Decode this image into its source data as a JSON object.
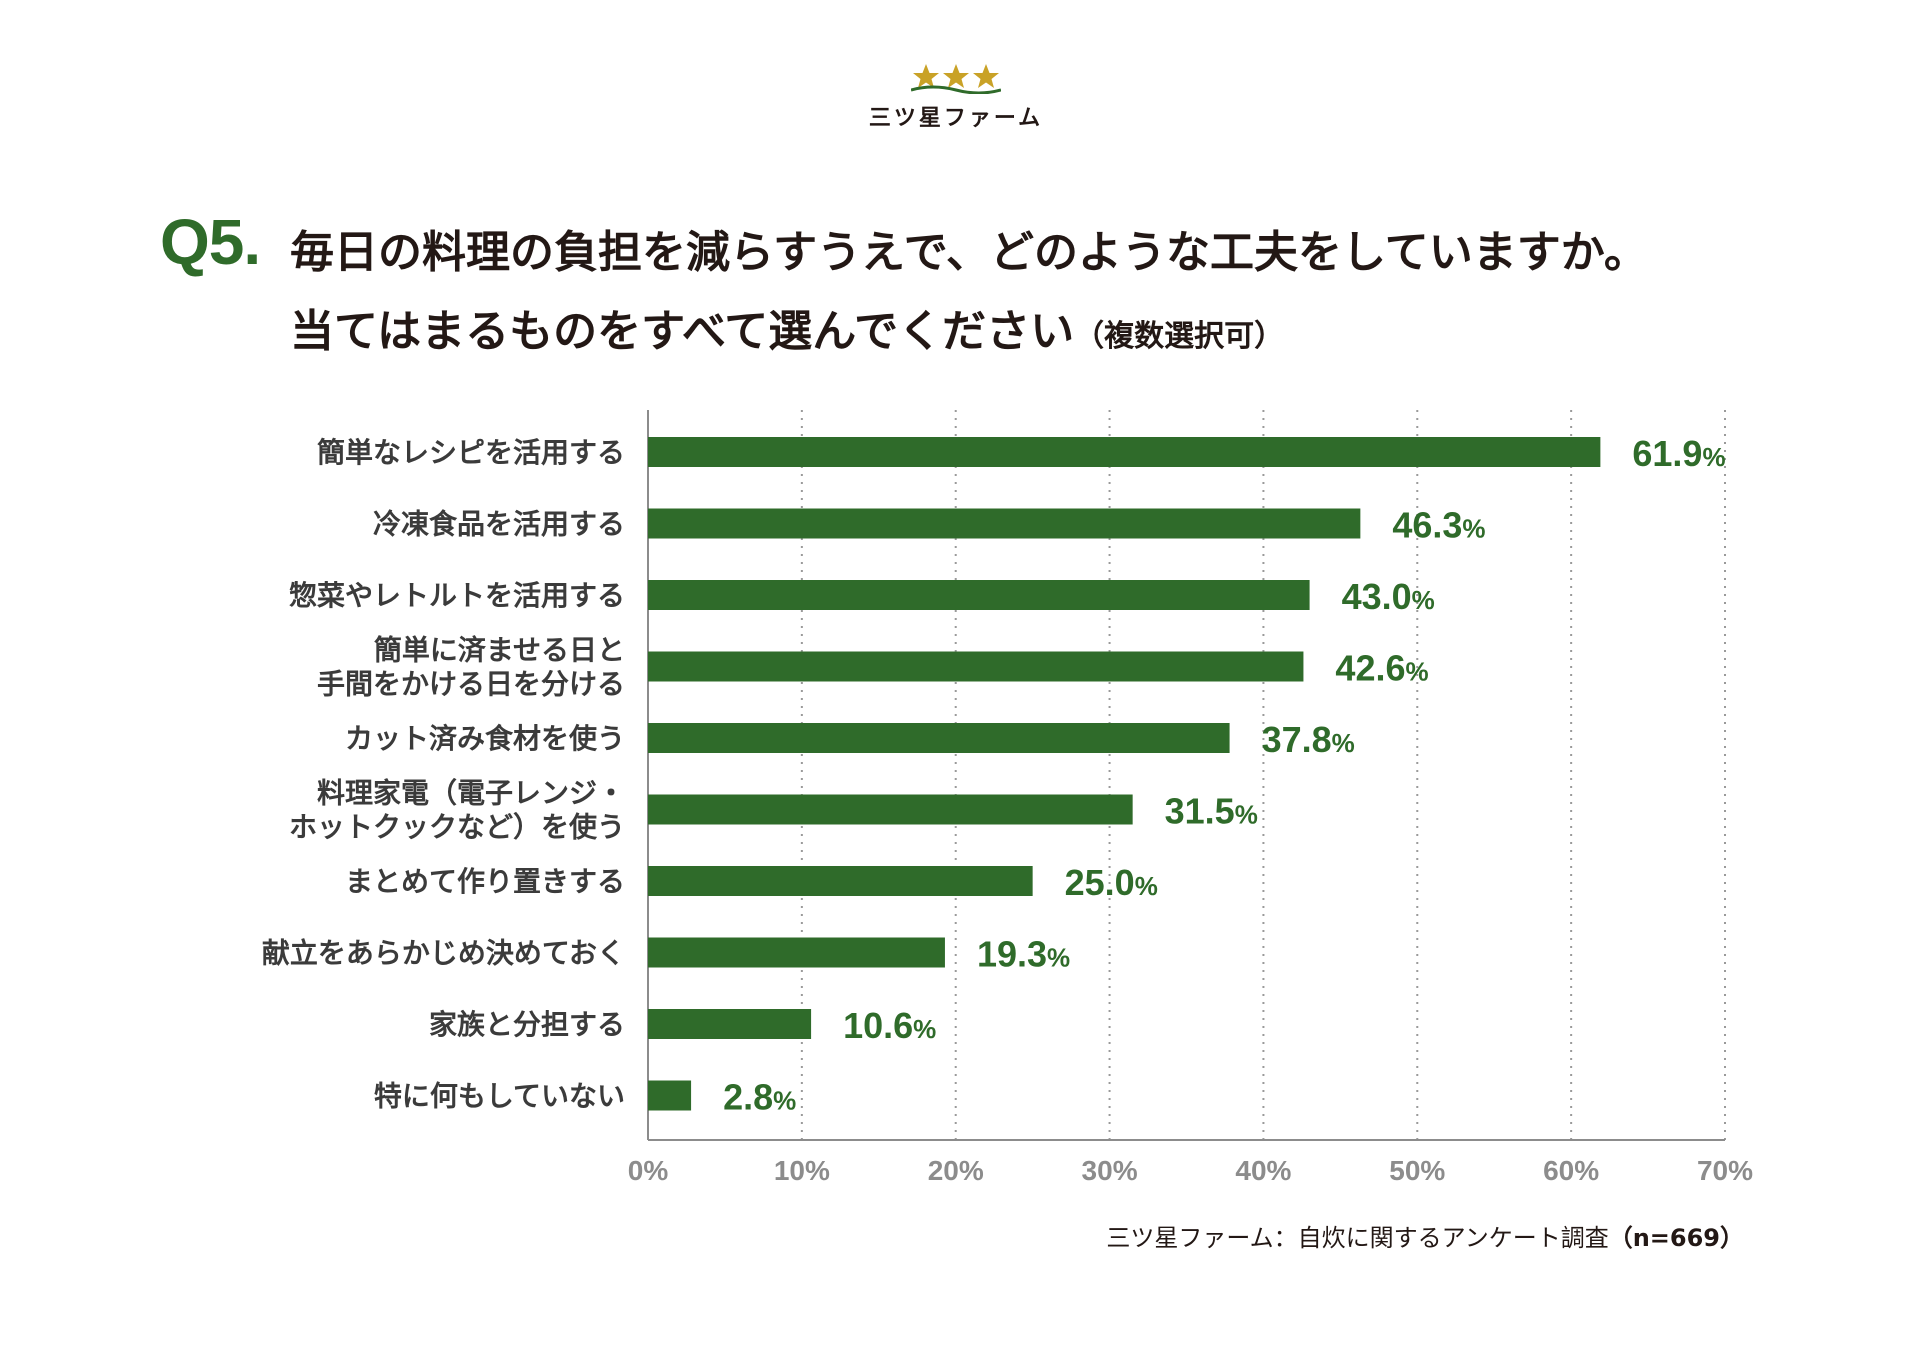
{
  "brand": {
    "name": "三ツ星ファーム",
    "star_color": "#c9a227"
  },
  "question": {
    "number": "Q5.",
    "line1": "毎日の料理の負担を減らすうえで、どのような工夫をしていますか。",
    "line2": "当てはまるものをすべて選んでください",
    "note": "（複数選択可）"
  },
  "source": {
    "label": "三ツ星ファーム：自炊に関するアンケート調査",
    "n": "（n=669）"
  },
  "chart_data": {
    "type": "bar",
    "orientation": "horizontal",
    "categories": [
      [
        "簡単なレシピを活用する"
      ],
      [
        "冷凍食品を活用する"
      ],
      [
        "惣菜やレトルトを活用する"
      ],
      [
        "簡単に済ませる日と",
        "手間をかける日を分ける"
      ],
      [
        "カット済み食材を使う"
      ],
      [
        "料理家電（電子レンジ・",
        "ホットクックなど）を使う"
      ],
      [
        "まとめて作り置きする"
      ],
      [
        "献立をあらかじめ決めておく"
      ],
      [
        "家族と分担する"
      ],
      [
        "特に何もしていない"
      ]
    ],
    "values": [
      61.9,
      46.3,
      43.0,
      42.6,
      37.8,
      31.5,
      25.0,
      19.3,
      10.6,
      2.8
    ],
    "value_labels": [
      "61.9",
      "46.3",
      "43.0",
      "42.6",
      "37.8",
      "31.5",
      "25.0",
      "19.3",
      "10.6",
      "2.8"
    ],
    "unit": "%",
    "xlim": [
      0,
      70
    ],
    "ticks": [
      0,
      10,
      20,
      30,
      40,
      50,
      60,
      70
    ],
    "tick_labels": [
      "0%",
      "10%",
      "20%",
      "30%",
      "40%",
      "50%",
      "60%",
      "70%"
    ],
    "grid": "vertical-dotted",
    "bar_color": "#2f6b2a",
    "label_color": "#2f6b2a",
    "tick_color": "#8c8c8c"
  }
}
